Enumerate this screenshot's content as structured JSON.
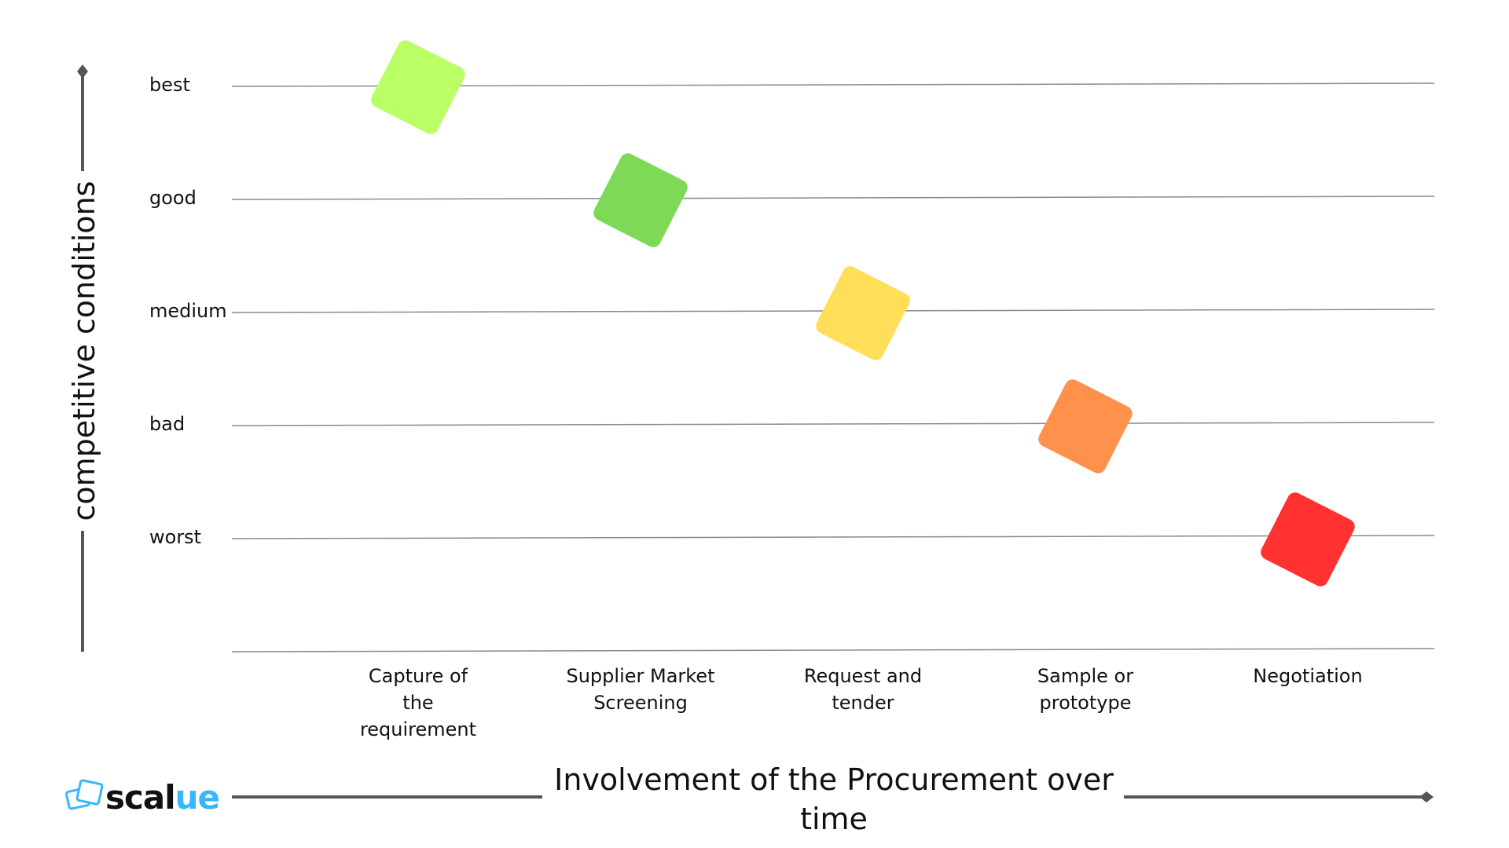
{
  "chart_data": {
    "type": "scatter",
    "title": "",
    "xlabel": "Involvement of the Procurement over time",
    "ylabel": "competitive conditions",
    "categories_y": [
      "best",
      "good",
      "medium",
      "bad",
      "worst"
    ],
    "categories_x": [
      "Capture of the requirement",
      "Supplier Market Screening",
      "Request and tender",
      "Sample or prototype",
      "Negotiation"
    ],
    "x_tick_lines": [
      [
        "Capture of",
        "the",
        "requirement"
      ],
      [
        "Supplier Market",
        "Screening"
      ],
      [
        "Request and",
        "tender"
      ],
      [
        "Sample or",
        "prototype"
      ],
      [
        "Negotiation"
      ]
    ],
    "points": [
      {
        "x": "Capture of the requirement",
        "y": "best",
        "color": "#bbff66"
      },
      {
        "x": "Supplier Market Screening",
        "y": "good",
        "color": "#7ed957"
      },
      {
        "x": "Request and tender",
        "y": "medium",
        "color": "#ffde59"
      },
      {
        "x": "Sample or prototype",
        "y": "bad",
        "color": "#ff914d"
      },
      {
        "x": "Negotiation",
        "y": "worst",
        "color": "#ff3131"
      }
    ],
    "xlabel_lines": [
      "Involvement of the Procurement over",
      "time"
    ],
    "grid": true,
    "legend": "none"
  },
  "brand": {
    "logo_text_dark": "scal",
    "logo_text_accent": "ue",
    "accent_color": "#38b6ff",
    "logo_icon": "stacked-squares-icon"
  },
  "colors": {
    "gridline": "#8a8a8a",
    "axis": "#555555"
  }
}
